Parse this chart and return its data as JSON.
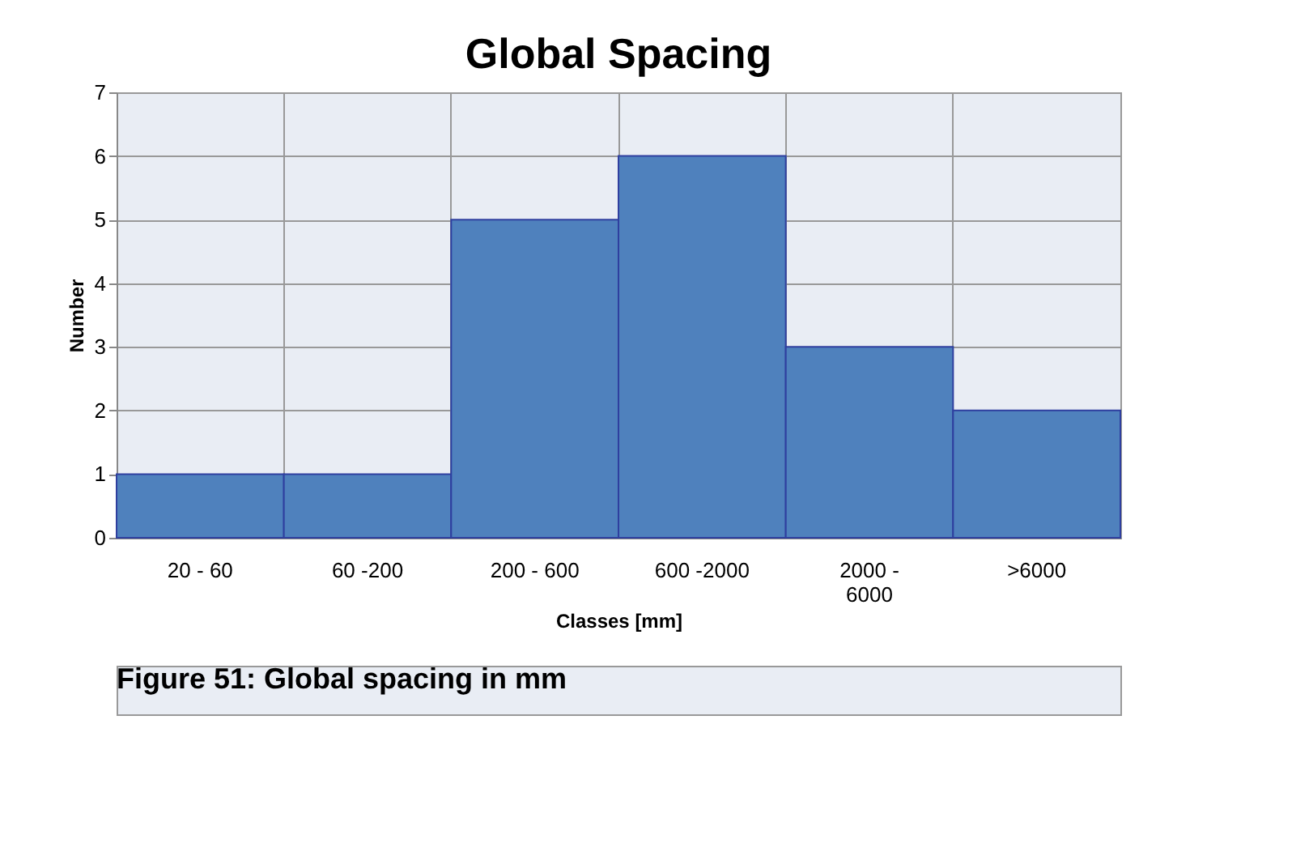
{
  "chart_data": {
    "type": "bar",
    "title": "Global Spacing",
    "xlabel": "Classes [mm]",
    "ylabel": "Number",
    "categories": [
      "20 - 60",
      "60 -200",
      "200 - 600",
      "600 -2000",
      "2000 - 6000",
      ">6000"
    ],
    "values": [
      1,
      1,
      5,
      6,
      3,
      2
    ],
    "color": "#4f81bd",
    "ylim": [
      0,
      7
    ],
    "yticks": [
      0,
      1,
      2,
      3,
      4,
      5,
      6,
      7
    ],
    "grid": true,
    "annotations": [
      "Figure 51: Global spacing in mm"
    ]
  }
}
